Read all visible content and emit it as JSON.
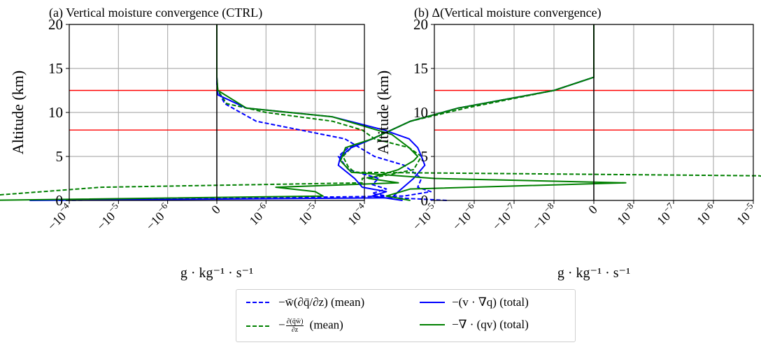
{
  "figure": {
    "background": "#ffffff",
    "axis_color": "#000000",
    "grid_color": "#b0b0b0"
  },
  "chart_data": [
    {
      "type": "line",
      "title": "(a)  Vertical moisture convergence (CTRL)",
      "xlabel": "g · kg⁻¹ · s⁻¹",
      "ylabel": "Altitude (km)",
      "xscale": "symlog",
      "xlim": [
        -0.0001,
        0.0001
      ],
      "ylim": [
        0,
        20
      ],
      "yticks": [
        0,
        5,
        10,
        15,
        20
      ],
      "xtick_labels": [
        {
          "mantissa": "−10",
          "exp": "−4"
        },
        {
          "mantissa": "−10",
          "exp": "−5"
        },
        {
          "mantissa": "−10",
          "exp": "−6"
        },
        {
          "mantissa": "0",
          "exp": ""
        },
        {
          "mantissa": "10",
          "exp": "−6"
        },
        {
          "mantissa": "10",
          "exp": "−5"
        },
        {
          "mantissa": "10",
          "exp": "−4"
        }
      ],
      "grid": true,
      "hlines": [
        {
          "y": 8,
          "color": "#ff0000"
        },
        {
          "y": 12.5,
          "color": "#ff0000"
        }
      ],
      "vline": {
        "x": 0,
        "color": "#000000"
      },
      "series": [
        {
          "name": "−w̄(∂q̄/∂z) (mean)",
          "color": "#0000ff",
          "style": "dashed",
          "x": [
            -4e-06,
            8e-06,
            1.5e-05,
            1.1e-05,
            1.2e-05,
            8e-06,
            4e-06,
            2e-06,
            4e-07,
            8e-08,
            1e-08,
            0,
            0,
            0
          ],
          "y": [
            0,
            0.5,
            1.0,
            1.5,
            2.5,
            4.0,
            5.0,
            7.0,
            9.0,
            11.0,
            12.5,
            13.2,
            14,
            20
          ]
        },
        {
          "name": "−∂(q̄w̄)/∂z (mean)",
          "color": "#008000",
          "style": "dashed",
          "x": [
            -6e-05,
            -4e-05,
            -1.5e-06,
            3e-06,
            3e-06,
            3e-06,
            5e-06,
            1e-05,
            1.2e-05,
            9e-06,
            4e-06,
            3e-06,
            1.5e-06,
            5e-07,
            1e-07,
            1e-08,
            0,
            0
          ],
          "y": [
            0,
            0.3,
            1.5,
            2.0,
            2.2,
            2.5,
            2.8,
            3.5,
            5.0,
            6.0,
            7.0,
            8.0,
            9.0,
            10.0,
            11.0,
            12.5,
            14,
            20
          ]
        },
        {
          "name": "−(v · ∇q) (total)",
          "color": "#0000ff",
          "style": "solid",
          "x": [
            -8e-06,
            6e-06,
            7e-06,
            1e-05,
            1.3e-05,
            1.2e-05,
            1.1e-05,
            9e-06,
            5e-06,
            1.5e-06,
            3e-07,
            1e-08,
            0,
            0
          ],
          "y": [
            0,
            0.3,
            1.0,
            2.5,
            4.0,
            5.0,
            6.0,
            7.0,
            8.0,
            9.5,
            10.5,
            12.0,
            14,
            20
          ]
        },
        {
          "name": "−∇ · (qv) (total)",
          "color": "#008000",
          "style": "solid",
          "x": [
            -2.5e-05,
            1.2e-06,
            1e-06,
            6e-07,
            7e-06,
            3.5e-06,
            7e-06,
            1e-05,
            1.1e-05,
            9e-06,
            6e-06,
            1.5e-06,
            3e-07,
            1e-08,
            0,
            0
          ],
          "y": [
            0,
            0.5,
            1.0,
            1.5,
            2.0,
            2.5,
            3.5,
            4.5,
            5.0,
            6.0,
            7.5,
            9.5,
            10.5,
            12.5,
            14,
            20
          ]
        }
      ]
    },
    {
      "type": "line",
      "title": "(b)  Δ(Vertical moisture convergence)",
      "xlabel": "g · kg⁻¹ · s⁻¹",
      "ylabel": "Altitude (km)",
      "xscale": "symlog",
      "xlim": [
        -1e-05,
        1e-05
      ],
      "ylim": [
        0,
        20
      ],
      "yticks": [
        0,
        5,
        10,
        15,
        20
      ],
      "xtick_labels": [
        {
          "mantissa": "−10",
          "exp": "−5"
        },
        {
          "mantissa": "−10",
          "exp": "−6"
        },
        {
          "mantissa": "−10",
          "exp": "−7"
        },
        {
          "mantissa": "−10",
          "exp": "−8"
        },
        {
          "mantissa": "0",
          "exp": ""
        },
        {
          "mantissa": "10",
          "exp": "−8"
        },
        {
          "mantissa": "10",
          "exp": "−7"
        },
        {
          "mantissa": "10",
          "exp": "−6"
        },
        {
          "mantissa": "10",
          "exp": "−5"
        }
      ],
      "grid": true,
      "hlines": [
        {
          "y": 8,
          "color": "#ff0000"
        },
        {
          "y": 12.5,
          "color": "#ff0000"
        }
      ],
      "vline": {
        "x": 0,
        "color": "#000000"
      },
      "series": [
        {
          "name": "−w̄(∂q̄/∂z) (mean)",
          "color": "#0000ff",
          "style": "dashed",
          "x": [
            -7e-08,
            -3e-07,
            -6e-07,
            -4e-07,
            -6e-07,
            -5e-07,
            -1.2e-06,
            -1.6e-06,
            -1.2e-06,
            -6e-07,
            -2e-07,
            -5e-08,
            -5e-09,
            0,
            0
          ],
          "y": [
            0,
            0.3,
            0.8,
            1.3,
            1.8,
            2.5,
            3.5,
            5.0,
            6.0,
            7.0,
            9.0,
            10.5,
            12.5,
            14,
            20
          ]
        },
        {
          "name": "−∂(q̄w̄)/∂z (mean)",
          "color": "#008000",
          "style": "dashed",
          "x": [
            1.5e-06,
            1.2e-07,
            -1e-06,
            -1.2e-06,
            -1.4e-06,
            -1.1e-06,
            -6e-07,
            -2e-07,
            -4e-08,
            -5e-09,
            0,
            0
          ],
          "y": [
            0,
            2.8,
            3.2,
            3.8,
            5.0,
            6.0,
            7.0,
            9.0,
            10.5,
            12.5,
            14,
            20
          ]
        },
        {
          "name": "−(v · ∇q) (total)",
          "color": "#0000ff",
          "style": "solid",
          "x": [
            -2.5e-07,
            -6e-07,
            -4e-07,
            -8e-07,
            -1e-06,
            -1.6e-06,
            -1.5e-06,
            -1.1e-06,
            -6e-07,
            -2e-07,
            -5e-08,
            -5e-09,
            0,
            0
          ],
          "y": [
            0,
            0.5,
            1.0,
            1.5,
            2.5,
            4.0,
            5.0,
            6.0,
            7.0,
            9.0,
            10.5,
            12.5,
            14,
            20
          ]
        },
        {
          "name": "−∇ · (qv) (total)",
          "color": "#008000",
          "style": "solid",
          "x": [
            -2e-07,
            -4e-07,
            -2e-07,
            4e-09,
            -1e-07,
            -1.1e-06,
            -1.5e-06,
            -1.3e-06,
            -6e-07,
            -2e-07,
            -5e-08,
            -5e-09,
            0,
            0
          ],
          "y": [
            0,
            0.5,
            1.3,
            2.0,
            2.5,
            3.2,
            4.5,
            6.0,
            7.0,
            9.0,
            10.5,
            12.5,
            14,
            20
          ]
        }
      ]
    }
  ]
}
